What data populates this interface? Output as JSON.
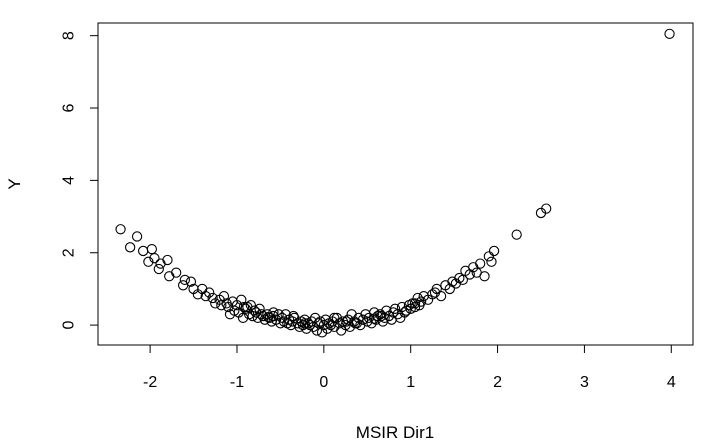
{
  "chart_data": {
    "type": "scatter",
    "title": "",
    "xlabel": "MSIR Dir1",
    "ylabel": "Y",
    "xlim": [
      -2.6,
      4.25
    ],
    "ylim": [
      -0.55,
      8.35
    ],
    "xticks": [
      -2,
      -1,
      0,
      1,
      2,
      3,
      4
    ],
    "yticks": [
      0,
      2,
      4,
      6,
      8
    ],
    "xtick_labels": [
      "-2",
      "-1",
      "0",
      "1",
      "2",
      "3",
      "4"
    ],
    "ytick_labels": [
      "0",
      "2",
      "4",
      "6",
      "8"
    ],
    "grid": false,
    "legend": "none",
    "series": [
      {
        "marker": "open-circle",
        "color": "#000000",
        "x": [
          -2.34,
          -2.23,
          -2.15,
          -2.08,
          -2.02,
          -1.98,
          -1.95,
          -1.88,
          -1.8,
          -1.78,
          -1.7,
          -1.62,
          -1.53,
          -1.5,
          -1.45,
          -1.4,
          -1.36,
          -1.32,
          -1.28,
          -1.25,
          -1.2,
          -1.18,
          -1.15,
          -1.12,
          -1.1,
          -1.05,
          -1.03,
          -1.0,
          -0.98,
          -0.95,
          -0.93,
          -0.9,
          -0.88,
          -0.86,
          -0.84,
          -0.82,
          -0.8,
          -0.78,
          -0.76,
          -0.74,
          -0.72,
          -0.7,
          -0.68,
          -0.65,
          -0.62,
          -0.6,
          -0.58,
          -0.55,
          -0.52,
          -0.5,
          -0.48,
          -0.46,
          -0.44,
          -0.42,
          -0.4,
          -0.38,
          -0.36,
          -0.34,
          -0.3,
          -0.28,
          -0.26,
          -0.24,
          -0.22,
          -0.2,
          -0.18,
          -0.16,
          -0.14,
          -0.12,
          -0.1,
          -0.08,
          -0.06,
          -0.04,
          -0.02,
          0.0,
          0.02,
          0.04,
          0.06,
          0.08,
          0.1,
          0.12,
          0.15,
          0.18,
          0.2,
          0.22,
          0.25,
          0.28,
          0.3,
          0.32,
          0.35,
          0.38,
          0.4,
          0.42,
          0.45,
          0.48,
          0.5,
          0.52,
          0.55,
          0.58,
          0.6,
          0.62,
          0.65,
          0.68,
          0.7,
          0.72,
          0.75,
          0.78,
          0.8,
          0.82,
          0.85,
          0.88,
          0.9,
          0.93,
          0.95,
          0.98,
          1.0,
          1.02,
          1.05,
          1.08,
          1.1,
          1.12,
          1.15,
          1.2,
          1.25,
          1.3,
          1.35,
          1.4,
          1.45,
          1.48,
          1.52,
          1.56,
          1.6,
          1.63,
          1.68,
          1.72,
          1.76,
          1.8,
          1.85,
          1.9,
          1.93,
          1.96,
          2.22,
          2.5,
          2.56,
          3.98,
          -1.9,
          -1.6,
          -1.08,
          -0.92,
          -0.58,
          -0.35,
          0.12,
          0.36,
          0.66,
          1.05,
          1.28,
          -0.22,
          0.26,
          -0.64,
          0.58
        ],
        "y": [
          2.65,
          2.15,
          2.45,
          2.05,
          1.75,
          2.1,
          1.85,
          1.7,
          1.8,
          1.35,
          1.45,
          1.1,
          1.2,
          1.0,
          0.85,
          1.0,
          0.8,
          0.9,
          0.75,
          0.6,
          0.7,
          0.55,
          0.8,
          0.6,
          0.5,
          0.65,
          0.4,
          0.55,
          0.35,
          0.7,
          0.2,
          0.45,
          0.5,
          0.3,
          0.55,
          0.25,
          0.4,
          0.35,
          0.2,
          0.45,
          0.3,
          0.25,
          0.15,
          0.3,
          0.2,
          0.1,
          0.25,
          0.15,
          0.3,
          0.05,
          0.2,
          0.1,
          0.3,
          0.05,
          0.15,
          0.0,
          0.1,
          0.2,
          0.05,
          -0.05,
          0.1,
          0.0,
          0.15,
          -0.1,
          0.05,
          0.0,
          0.1,
          -0.05,
          0.2,
          -0.15,
          0.05,
          0.1,
          -0.2,
          0.0,
          0.15,
          -0.1,
          0.05,
          0.0,
          0.1,
          -0.05,
          0.2,
          0.05,
          -0.15,
          0.1,
          0.0,
          0.15,
          -0.05,
          0.3,
          0.1,
          0.05,
          0.2,
          0.0,
          0.15,
          0.3,
          0.1,
          0.2,
          0.05,
          0.35,
          0.15,
          0.25,
          0.3,
          0.1,
          0.2,
          0.4,
          0.25,
          0.15,
          0.35,
          0.45,
          0.3,
          0.2,
          0.5,
          0.35,
          0.4,
          0.55,
          0.45,
          0.6,
          0.5,
          0.75,
          0.55,
          0.65,
          0.8,
          0.7,
          0.85,
          1.0,
          0.8,
          1.1,
          1.0,
          1.2,
          1.15,
          1.3,
          1.25,
          1.5,
          1.4,
          1.6,
          1.45,
          1.7,
          1.35,
          1.9,
          1.75,
          2.05,
          2.5,
          3.1,
          3.22,
          8.05,
          1.55,
          1.25,
          0.3,
          0.5,
          0.35,
          0.25,
          0.2,
          0.05,
          0.25,
          0.6,
          0.9,
          0.05,
          0.1,
          0.22,
          0.18
        ]
      }
    ]
  }
}
